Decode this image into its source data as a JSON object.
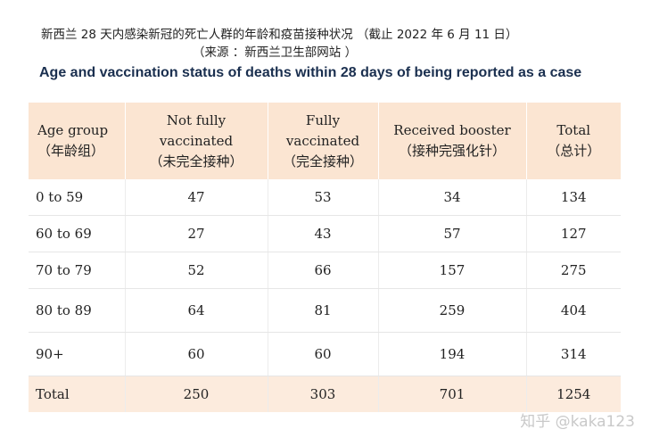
{
  "header": {
    "title_cn": "新西兰 28 天内感染新冠的死亡人群的年龄和疫苗接种状况 （截止 2022 年 6 月 11 日）",
    "source_cn": "（来源 ：新西兰卫生部网站 ）",
    "title_en": "Age and vaccination status of deaths within 28 days of being reported as a case"
  },
  "table": {
    "columns": [
      {
        "en": "Age group",
        "cn": "（年龄组）"
      },
      {
        "en": "Not fully vaccinated",
        "en_line1": "Not fully",
        "en_line2": "vaccinated",
        "cn": "（未完全接种）"
      },
      {
        "en": "Fully vaccinated",
        "en_line1": "Fully",
        "en_line2": "vaccinated",
        "cn": "（完全接种）"
      },
      {
        "en": "Received booster",
        "cn": "（接种完强化针）"
      },
      {
        "en": "Total",
        "cn": "（总计）"
      }
    ],
    "rows": [
      [
        "0 to 59",
        "47",
        "53",
        "34",
        "134"
      ],
      [
        "60 to 69",
        "27",
        "43",
        "57",
        "127"
      ],
      [
        "70 to 79",
        "52",
        "66",
        "157",
        "275"
      ],
      [
        "80 to 89",
        "64",
        "81",
        "259",
        "404"
      ],
      [
        "90+",
        "60",
        "60",
        "194",
        "314"
      ],
      [
        "Total",
        "250",
        "303",
        "701",
        "1254"
      ]
    ]
  },
  "watermark": "知乎 @kaka123"
}
